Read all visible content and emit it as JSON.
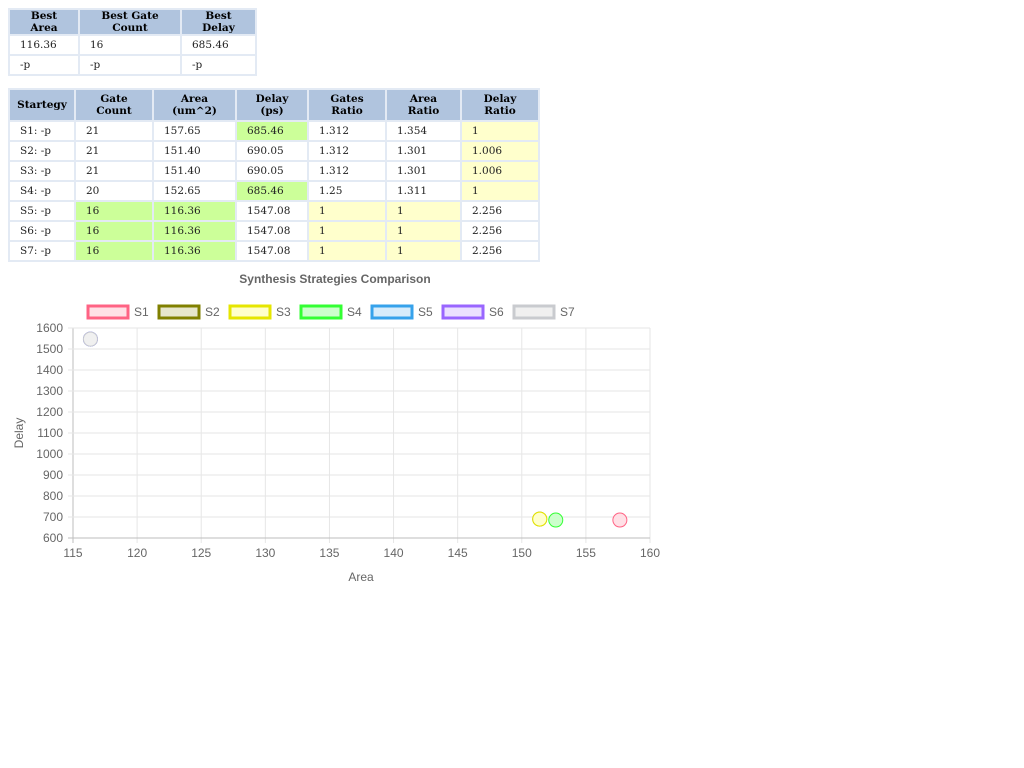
{
  "best_table": {
    "headers": [
      "Best Area",
      "Best Gate Count",
      "Best Delay"
    ],
    "rows": [
      [
        "116.36",
        "16",
        "685.46"
      ],
      [
        "-p",
        "-p",
        "-p"
      ]
    ]
  },
  "strategy_table": {
    "headers": [
      [
        "Startegy"
      ],
      [
        "Gate",
        "Count"
      ],
      [
        "Area",
        "(um^2)"
      ],
      [
        "Delay",
        "(ps)"
      ],
      [
        "Gates",
        "Ratio"
      ],
      [
        "Area",
        "Ratio"
      ],
      [
        "Delay",
        "Ratio"
      ]
    ],
    "rows": [
      {
        "cells": [
          "S1: -p",
          "21",
          "157.65",
          "685.46",
          "1.312",
          "1.354",
          "1"
        ],
        "hl": [
          "",
          "",
          "",
          "green",
          "",
          "",
          "yellow"
        ]
      },
      {
        "cells": [
          "S2: -p",
          "21",
          "151.40",
          "690.05",
          "1.312",
          "1.301",
          "1.006"
        ],
        "hl": [
          "",
          "",
          "",
          "",
          "",
          "",
          "yellow"
        ]
      },
      {
        "cells": [
          "S3: -p",
          "21",
          "151.40",
          "690.05",
          "1.312",
          "1.301",
          "1.006"
        ],
        "hl": [
          "",
          "",
          "",
          "",
          "",
          "",
          "yellow"
        ]
      },
      {
        "cells": [
          "S4: -p",
          "20",
          "152.65",
          "685.46",
          "1.25",
          "1.311",
          "1"
        ],
        "hl": [
          "",
          "",
          "",
          "green",
          "",
          "",
          "yellow"
        ]
      },
      {
        "cells": [
          "S5: -p",
          "16",
          "116.36",
          "1547.08",
          "1",
          "1",
          "2.256"
        ],
        "hl": [
          "",
          "green",
          "green",
          "",
          "yellow",
          "yellow",
          ""
        ]
      },
      {
        "cells": [
          "S6: -p",
          "16",
          "116.36",
          "1547.08",
          "1",
          "1",
          "2.256"
        ],
        "hl": [
          "",
          "green",
          "green",
          "",
          "yellow",
          "yellow",
          ""
        ]
      },
      {
        "cells": [
          "S7: -p",
          "16",
          "116.36",
          "1547.08",
          "1",
          "1",
          "2.256"
        ],
        "hl": [
          "",
          "green",
          "green",
          "",
          "yellow",
          "yellow",
          ""
        ]
      }
    ]
  },
  "chart_data": {
    "type": "scatter",
    "title": "Synthesis Strategies Comparison",
    "xlabel": "Area",
    "ylabel": "Delay",
    "xlim": [
      115,
      160
    ],
    "ylim": [
      600,
      1600
    ],
    "xticks": [
      115,
      120,
      125,
      130,
      135,
      140,
      145,
      150,
      155,
      160
    ],
    "yticks": [
      600,
      700,
      800,
      900,
      1000,
      1100,
      1200,
      1300,
      1400,
      1500,
      1600
    ],
    "grid": true,
    "legend_position": "top",
    "series": [
      {
        "name": "S1",
        "x": 157.65,
        "y": 685.46,
        "border": "#ff6384",
        "fill": "#ffe0e6"
      },
      {
        "name": "S2",
        "x": 151.4,
        "y": 690.05,
        "border": "#808000",
        "fill": "#e6e6cc"
      },
      {
        "name": "S3",
        "x": 151.4,
        "y": 690.05,
        "border": "#e6e600",
        "fill": "#ffffcc"
      },
      {
        "name": "S4",
        "x": 152.65,
        "y": 685.46,
        "border": "#33ff33",
        "fill": "#ccffcc"
      },
      {
        "name": "S5",
        "x": 116.36,
        "y": 1547.08,
        "border": "#36a2eb",
        "fill": "#d7ecfb"
      },
      {
        "name": "S6",
        "x": 116.36,
        "y": 1547.08,
        "border": "#9966ff",
        "fill": "#ebe0ff"
      },
      {
        "name": "S7",
        "x": 116.36,
        "y": 1547.08,
        "border": "#c9cbcf",
        "fill": "#f0f0f0"
      }
    ]
  }
}
